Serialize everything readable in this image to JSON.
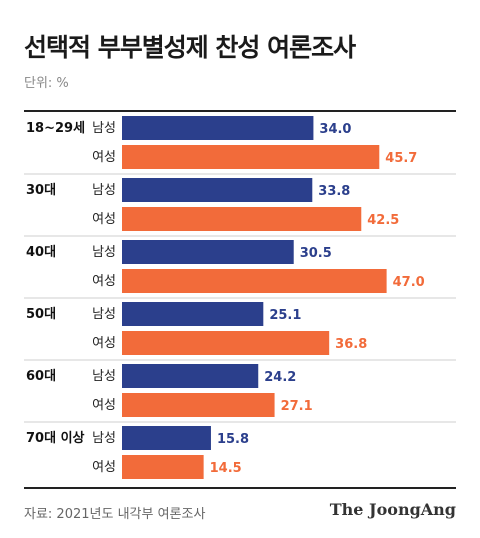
{
  "title": "선택적 부부별성제 찬성 여론조사",
  "unit": "단위: %",
  "source": "자료: 2021년도 내각부 여론조사",
  "brand": "The JoongAng",
  "colors": {
    "male": "#2b3f8c",
    "female": "#f26b3a",
    "grid": "#cfcfcf"
  },
  "chart_data": {
    "type": "bar",
    "orientation": "horizontal",
    "categories": [
      "18~29세",
      "30대",
      "40대",
      "50대",
      "60대",
      "70대 이상"
    ],
    "series": [
      {
        "name": "남성",
        "values": [
          34.0,
          33.8,
          30.5,
          25.1,
          24.2,
          15.8
        ]
      },
      {
        "name": "여성",
        "values": [
          45.7,
          42.5,
          47.0,
          36.8,
          27.1,
          14.5
        ]
      }
    ],
    "xlim": [
      0,
      50
    ]
  }
}
